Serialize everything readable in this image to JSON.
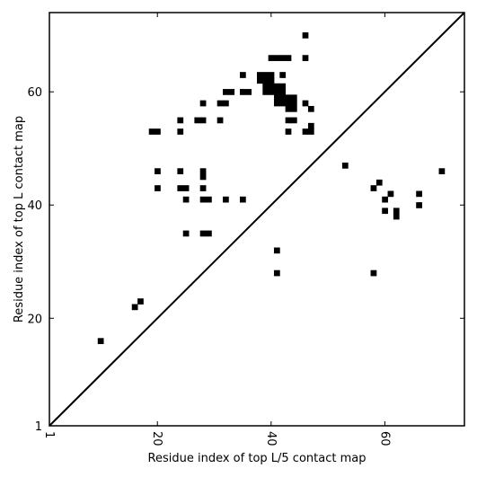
{
  "chart_data": {
    "type": "scatter",
    "marker": "square",
    "marker_color": "#000000",
    "xlabel": "Residue index of top L/5 contact map",
    "ylabel": "Residue index of top L contact map",
    "xlim": [
      1,
      74
    ],
    "ylim": [
      1,
      74
    ],
    "xticks": [
      1,
      20,
      40,
      60
    ],
    "yticks": [
      1,
      20,
      40,
      60
    ],
    "grid": false,
    "diagonal_line": true,
    "points": [
      [
        10,
        16
      ],
      [
        16,
        22
      ],
      [
        17,
        23
      ],
      [
        19,
        53
      ],
      [
        20,
        53
      ],
      [
        20,
        46
      ],
      [
        20,
        43
      ],
      [
        24,
        55
      ],
      [
        24,
        53
      ],
      [
        24,
        46
      ],
      [
        24,
        43
      ],
      [
        25,
        43
      ],
      [
        25,
        41
      ],
      [
        25,
        35
      ],
      [
        27,
        55
      ],
      [
        28,
        55
      ],
      [
        28,
        58
      ],
      [
        28,
        46
      ],
      [
        28,
        45
      ],
      [
        28,
        43
      ],
      [
        28,
        41
      ],
      [
        29,
        41
      ],
      [
        28,
        35
      ],
      [
        29,
        35
      ],
      [
        31,
        55
      ],
      [
        31,
        58
      ],
      [
        32,
        58
      ],
      [
        32,
        60
      ],
      [
        33,
        60
      ],
      [
        32,
        41
      ],
      [
        35,
        63
      ],
      [
        35,
        60
      ],
      [
        36,
        60
      ],
      [
        35,
        41
      ],
      [
        38,
        63
      ],
      [
        38,
        62
      ],
      [
        39,
        63
      ],
      [
        39,
        62
      ],
      [
        39,
        61
      ],
      [
        40,
        63
      ],
      [
        40,
        62
      ],
      [
        40,
        61
      ],
      [
        40,
        60
      ],
      [
        39,
        60
      ],
      [
        40,
        66
      ],
      [
        41,
        66
      ],
      [
        42,
        66
      ],
      [
        43,
        66
      ],
      [
        41,
        61
      ],
      [
        42,
        61
      ],
      [
        41,
        60
      ],
      [
        42,
        60
      ],
      [
        41,
        59
      ],
      [
        42,
        59
      ],
      [
        43,
        59
      ],
      [
        44,
        59
      ],
      [
        41,
        58
      ],
      [
        42,
        58
      ],
      [
        43,
        58
      ],
      [
        44,
        58
      ],
      [
        43,
        57
      ],
      [
        44,
        57
      ],
      [
        42,
        63
      ],
      [
        43,
        55
      ],
      [
        44,
        55
      ],
      [
        43,
        53
      ],
      [
        41,
        32
      ],
      [
        41,
        28
      ],
      [
        46,
        70
      ],
      [
        46,
        66
      ],
      [
        46,
        58
      ],
      [
        47,
        57
      ],
      [
        47,
        54
      ],
      [
        46,
        53
      ],
      [
        47,
        53
      ],
      [
        53,
        47
      ],
      [
        58,
        43
      ],
      [
        59,
        44
      ],
      [
        60,
        41
      ],
      [
        60,
        39
      ],
      [
        61,
        42
      ],
      [
        62,
        39
      ],
      [
        62,
        38
      ],
      [
        58,
        28
      ],
      [
        66,
        42
      ],
      [
        66,
        40
      ],
      [
        70,
        46
      ]
    ]
  }
}
